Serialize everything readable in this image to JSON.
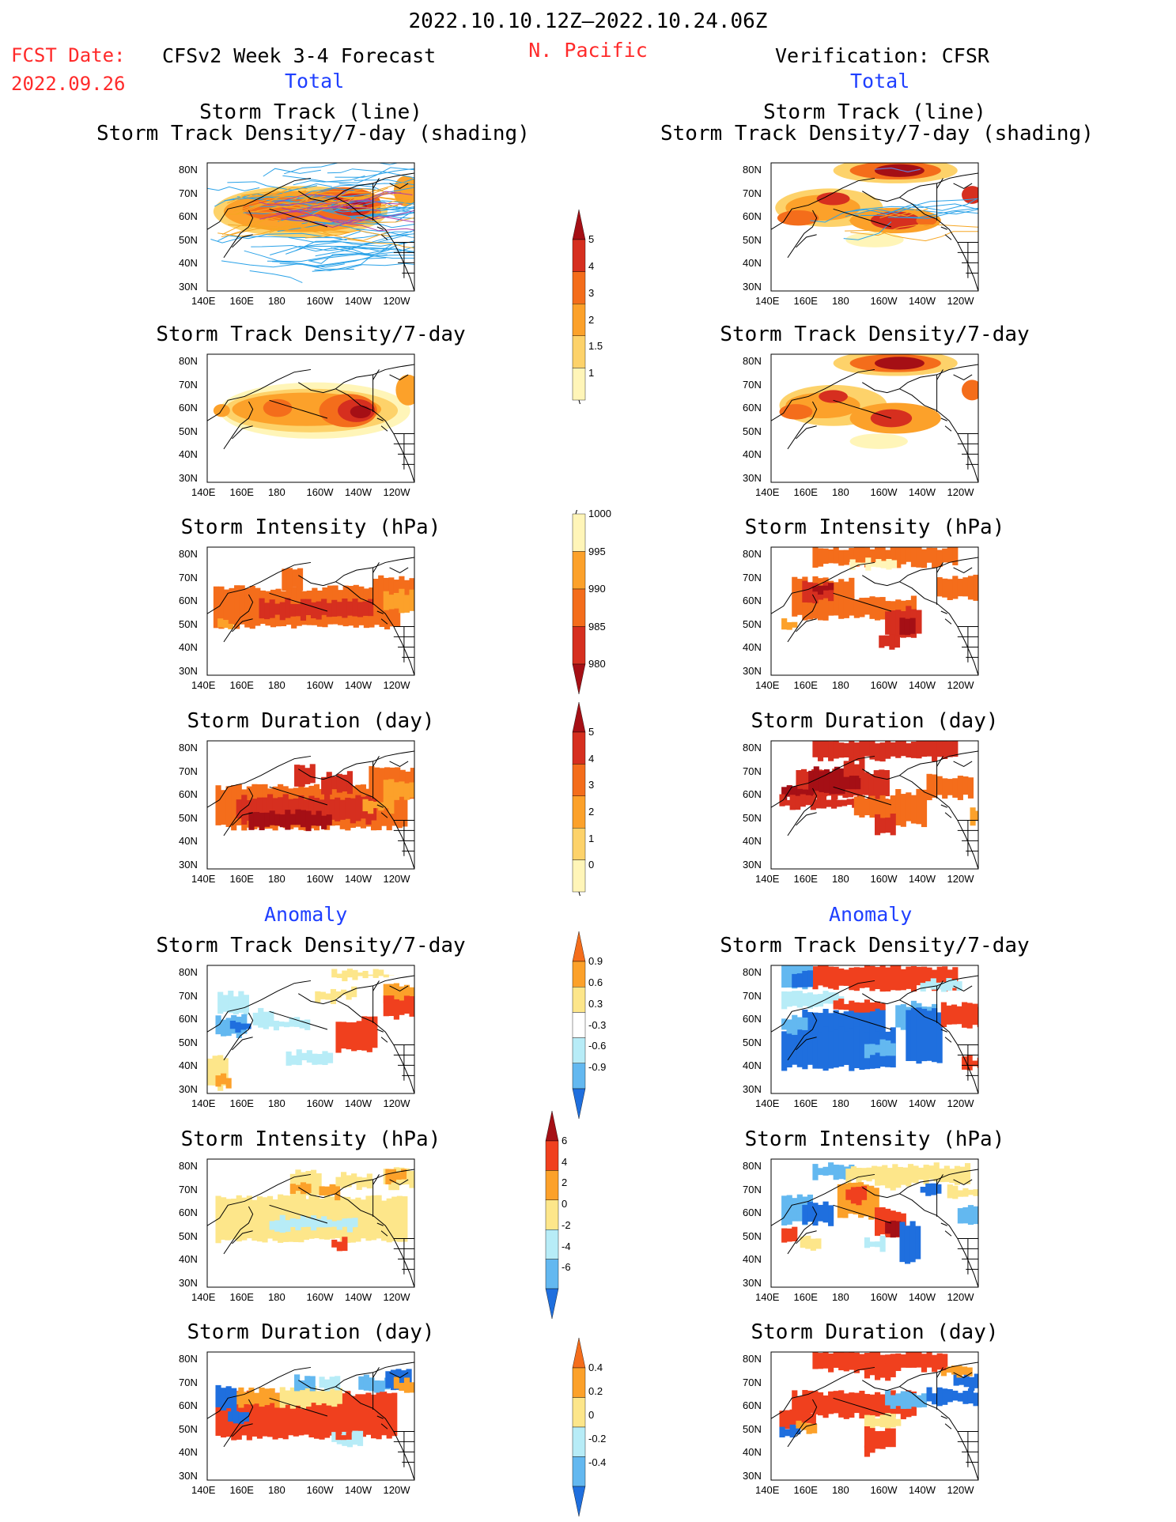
{
  "header": {
    "period": "2022.10.10.12Z–2022.10.24.06Z",
    "fcst_label": "FCST Date:",
    "fcst_date": "2022.09.26",
    "left_title": "CFSv2 Week 3-4 Forecast",
    "region": "N. Pacific",
    "right_title": "Verification: CFSR"
  },
  "sections": {
    "total_left": "Total",
    "total_right": "Total",
    "anomaly_left": "Anomaly",
    "anomaly_right": "Anomaly"
  },
  "axes": {
    "lat_labels": [
      "80N",
      "70N",
      "60N",
      "50N",
      "40N",
      "30N"
    ],
    "lon_labels": [
      "140E",
      "160E",
      "180",
      "160W",
      "140W",
      "120W"
    ]
  },
  "panels": [
    {
      "title": "Storm Track (line)\nStorm Track Density/7-day (shading)",
      "kind": "track_density_lines"
    },
    {
      "title": "Storm Track Density/7-day",
      "kind": "density"
    },
    {
      "title": "Storm Intensity (hPa)",
      "kind": "intensity"
    },
    {
      "title": "Storm Duration (day)",
      "kind": "duration"
    },
    {
      "title": "Storm Track Density/7-day",
      "kind": "density_anom"
    },
    {
      "title": "Storm Intensity (hPa)",
      "kind": "intensity_anom"
    },
    {
      "title": "Storm Duration (day)",
      "kind": "duration_anom"
    }
  ],
  "colorbars": [
    {
      "name": "density",
      "labels": [
        "5",
        "4",
        "3",
        "2",
        "1.5",
        "1"
      ],
      "colors": [
        "#a50f15",
        "#d62f1f",
        "#f46d1b",
        "#fca12a",
        "#fdd26a",
        "#fff5b8"
      ]
    },
    {
      "name": "intensity",
      "labels": [
        "1000",
        "995",
        "990",
        "985",
        "980"
      ],
      "colors": [
        "#fff5b8",
        "#fca12a",
        "#f46d1b",
        "#d62f1f",
        "#a50f15"
      ]
    },
    {
      "name": "duration",
      "labels": [
        "5",
        "4",
        "3",
        "2",
        "1",
        "0"
      ],
      "colors": [
        "#a50f15",
        "#d62f1f",
        "#f46d1b",
        "#fca12a",
        "#fdd26a",
        "#fff5b8"
      ]
    },
    {
      "name": "density_anom",
      "labels": [
        "0.9",
        "0.6",
        "0.3",
        "-0.3",
        "-0.6",
        "-0.9"
      ],
      "colors": [
        "#f46d1b",
        "#fca12a",
        "#fde68a",
        "#ffffff",
        "#b7ecf7",
        "#63b8f0",
        "#1f6fde"
      ]
    },
    {
      "name": "intensity_anom",
      "labels": [
        "6",
        "4",
        "2",
        "0",
        "-2",
        "-4",
        "-6"
      ],
      "colors": [
        "#a50f15",
        "#f0401e",
        "#fca12a",
        "#fde68a",
        "#b7ecf7",
        "#63b8f0",
        "#1f6fde"
      ]
    },
    {
      "name": "duration_anom",
      "labels": [
        "0.4",
        "0.2",
        "0",
        "-0.2",
        "-0.4"
      ],
      "colors": [
        "#f46d1b",
        "#fca12a",
        "#fde68a",
        "#b7ecf7",
        "#63b8f0",
        "#1f6fde"
      ]
    }
  ],
  "colors": {
    "header_red": "#ff2a2a",
    "label_blue": "#1f3fff"
  }
}
